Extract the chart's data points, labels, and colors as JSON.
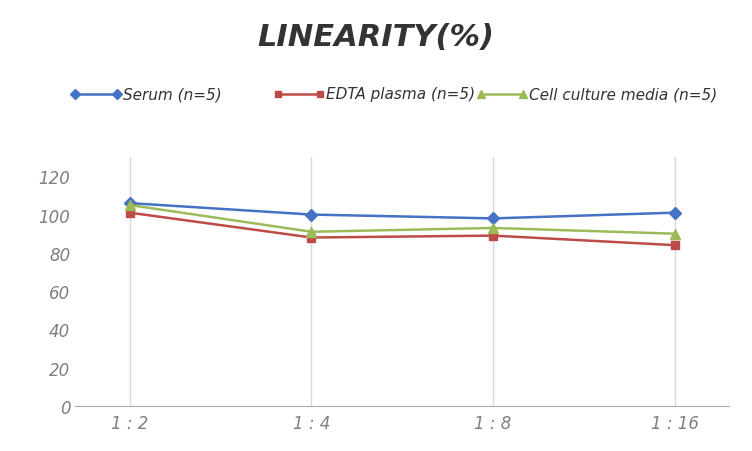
{
  "title": "LINEARITY(%)",
  "x_labels": [
    "1 : 2",
    "1 : 4",
    "1 : 8",
    "1 : 16"
  ],
  "series": [
    {
      "label": "Serum (n=5)",
      "values": [
        106,
        100,
        98,
        101
      ],
      "color": "#4472C4",
      "marker": "D",
      "markersize": 6
    },
    {
      "label": "EDTA plasma (n=5)",
      "values": [
        101,
        88,
        89,
        84
      ],
      "color": "#BE4B48",
      "marker": "s",
      "markersize": 6
    },
    {
      "label": "Cell culture media (n=5)",
      "values": [
        105,
        91,
        93,
        90
      ],
      "color": "#9BBB59",
      "marker": "^",
      "markersize": 7
    }
  ],
  "ylim": [
    0,
    130
  ],
  "yticks": [
    0,
    20,
    40,
    60,
    80,
    100,
    120
  ],
  "background_color": "#FFFFFF",
  "grid_color": "#D9D9D9",
  "title_fontsize": 22,
  "legend_fontsize": 11,
  "tick_fontsize": 12,
  "tick_color": "#808080"
}
